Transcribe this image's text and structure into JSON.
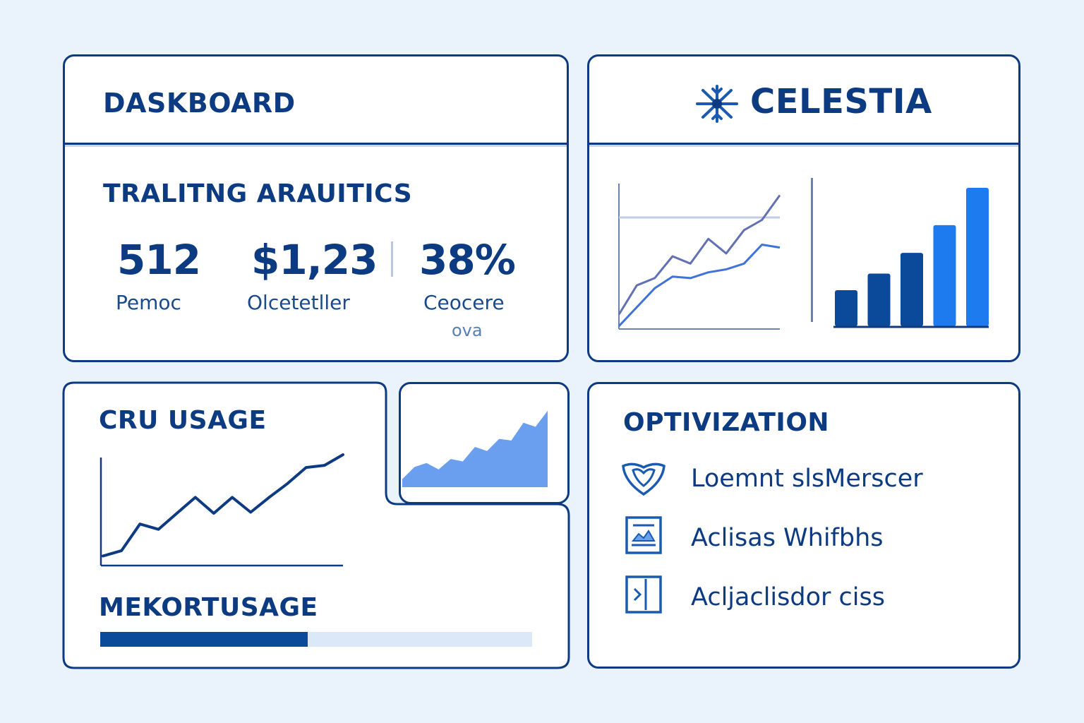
{
  "dashboard": {
    "title": "DASKBOARD",
    "section_title": "TRALITNG ARAUITICS",
    "stats": [
      {
        "value": "512",
        "label": "Pemoc"
      },
      {
        "value": "$1,23",
        "label": "Olcetetller"
      },
      {
        "value": "38%",
        "label": "Ceocere",
        "sublabel": "ova"
      }
    ]
  },
  "brand": {
    "name": "CELESTIA",
    "logo_icon": "snowflake-icon"
  },
  "cpu_usage": {
    "title": "CRU USAGE"
  },
  "memory_usage": {
    "title": "MEKORTUSAGE",
    "progress_fraction": 0.48
  },
  "optimization": {
    "title": "OPTIVIZATION",
    "items": [
      {
        "icon": "shield-heart-icon",
        "label": "Loemnt slsMerscer"
      },
      {
        "icon": "image-frame-icon",
        "label": "Aclisas Whifbhs"
      },
      {
        "icon": "play-frame-icon",
        "label": "Acljaclisdor ciss"
      }
    ]
  },
  "colors": {
    "navy": "#0d3b82",
    "dark_blue": "#0b4a9a",
    "bright_blue": "#1e7bef",
    "area_blue": "#6a9ff0",
    "light_line": "#3f73d8",
    "background": "#eaf3fc"
  },
  "chart_data": [
    {
      "type": "line",
      "series": [
        {
          "values": [
            1,
            3,
            3.5,
            5,
            4.5,
            6.2,
            5.2,
            6.8,
            7.5,
            9.2
          ]
        },
        {
          "values": [
            0.2,
            1.5,
            2.8,
            3.6,
            3.5,
            3.9,
            4.1,
            4.5,
            5.8,
            5.6
          ]
        }
      ],
      "ylim": [
        0,
        10
      ],
      "grid": true
    },
    {
      "type": "bar",
      "values": [
        26,
        38,
        53,
        73,
        100
      ]
    },
    {
      "type": "area",
      "values": [
        1,
        2.5,
        3,
        2.2,
        3.5,
        3.2,
        5,
        4.5,
        6,
        5.8,
        8,
        7.5,
        9.5
      ],
      "ylim": [
        0,
        10
      ]
    },
    {
      "type": "line",
      "values": [
        0.5,
        1,
        3.5,
        3,
        4.5,
        6,
        4.5,
        6,
        4.6,
        6,
        7.3,
        8.8,
        9,
        10
      ],
      "ylim": [
        0,
        10
      ]
    }
  ]
}
